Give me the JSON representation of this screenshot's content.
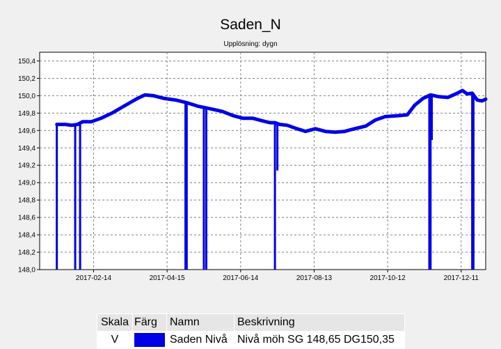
{
  "chart_data": {
    "type": "line",
    "title": "Saden_N",
    "subtitle": "Upplösning: dygn",
    "xlabel": "",
    "ylabel": "",
    "x_ticks": [
      "2017-02-14",
      "2017-04-15",
      "2017-06-14",
      "2017-08-13",
      "2017-10-12",
      "2017-12-11"
    ],
    "y_ticks": [
      "148,0",
      "148,2",
      "148,4",
      "148,6",
      "148,8",
      "149,0",
      "149,2",
      "149,4",
      "149,6",
      "149,8",
      "150,0",
      "150,2",
      "150,4"
    ],
    "xlim": [
      "2017-01-01",
      "2017-12-31"
    ],
    "ylim": [
      148.0,
      150.5
    ],
    "grid": true,
    "series": [
      {
        "name": "Saden Nivå",
        "color": "#0000e6",
        "points": [
          [
            "2017-01-15",
            149.67
          ],
          [
            "2017-01-22",
            149.67
          ],
          [
            "2017-01-27",
            149.66
          ],
          [
            "2017-02-01",
            149.67
          ],
          [
            "2017-02-05",
            149.7
          ],
          [
            "2017-02-12",
            149.7
          ],
          [
            "2017-02-20",
            149.74
          ],
          [
            "2017-03-01",
            149.8
          ],
          [
            "2017-03-12",
            149.89
          ],
          [
            "2017-03-22",
            149.97
          ],
          [
            "2017-03-28",
            150.01
          ],
          [
            "2017-04-04",
            150.0
          ],
          [
            "2017-04-12",
            149.97
          ],
          [
            "2017-04-22",
            149.95
          ],
          [
            "2017-05-01",
            149.92
          ],
          [
            "2017-05-10",
            149.88
          ],
          [
            "2017-05-20",
            149.85
          ],
          [
            "2017-05-30",
            149.82
          ],
          [
            "2017-06-08",
            149.77
          ],
          [
            "2017-06-16",
            149.74
          ],
          [
            "2017-06-24",
            149.74
          ],
          [
            "2017-07-02",
            149.71
          ],
          [
            "2017-07-08",
            149.69
          ],
          [
            "2017-07-12",
            149.69
          ],
          [
            "2017-07-16",
            149.67
          ],
          [
            "2017-07-22",
            149.66
          ],
          [
            "2017-07-30",
            149.62
          ],
          [
            "2017-08-06",
            149.59
          ],
          [
            "2017-08-14",
            149.62
          ],
          [
            "2017-08-22",
            149.59
          ],
          [
            "2017-08-30",
            149.58
          ],
          [
            "2017-09-07",
            149.59
          ],
          [
            "2017-09-15",
            149.62
          ],
          [
            "2017-09-24",
            149.65
          ],
          [
            "2017-10-02",
            149.72
          ],
          [
            "2017-10-10",
            149.76
          ],
          [
            "2017-10-20",
            149.77
          ],
          [
            "2017-10-28",
            149.78
          ],
          [
            "2017-11-03",
            149.89
          ],
          [
            "2017-11-10",
            149.97
          ],
          [
            "2017-11-16",
            150.01
          ],
          [
            "2017-11-22",
            149.99
          ],
          [
            "2017-11-30",
            149.98
          ],
          [
            "2017-12-08",
            150.03
          ],
          [
            "2017-12-12",
            150.06
          ],
          [
            "2017-12-16",
            150.02
          ],
          [
            "2017-12-20",
            150.03
          ],
          [
            "2017-12-24",
            149.95
          ],
          [
            "2017-12-28",
            149.94
          ],
          [
            "2017-12-31",
            149.96
          ]
        ],
        "drops": [
          [
            "2017-01-15",
            148.0
          ],
          [
            "2017-01-30",
            148.0
          ],
          [
            "2017-02-03",
            148.0
          ],
          [
            "2017-04-30",
            148.0
          ],
          [
            "2017-05-01",
            148.0
          ],
          [
            "2017-05-15",
            148.0
          ],
          [
            "2017-05-17",
            148.0
          ],
          [
            "2017-07-12",
            148.0
          ],
          [
            "2017-07-14",
            149.14
          ],
          [
            "2017-11-15",
            148.0
          ],
          [
            "2017-11-16",
            148.0
          ],
          [
            "2017-11-17",
            149.49
          ],
          [
            "2017-12-20",
            148.0
          ],
          [
            "2017-12-21",
            148.0
          ]
        ]
      }
    ]
  },
  "legend": {
    "headers": {
      "scale": "Skala",
      "color": "Färg",
      "name": "Namn",
      "description": "Beskrivning"
    },
    "rows": [
      {
        "scale": "V",
        "color": "#0000e6",
        "name": "Saden Nivå",
        "description": "Nivå möh SG 148,65 DG150,35"
      }
    ]
  }
}
